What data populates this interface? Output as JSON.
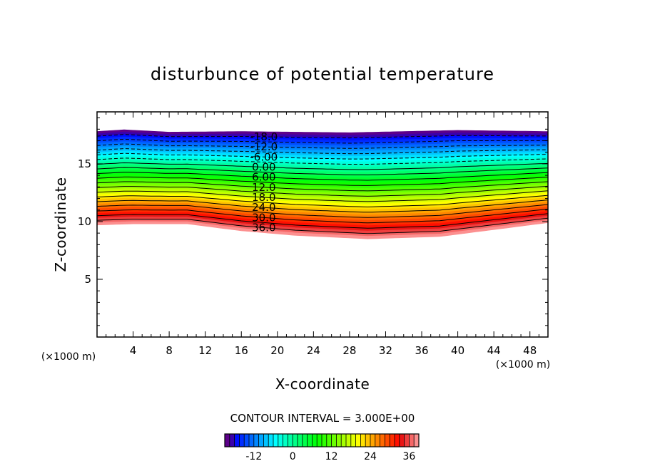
{
  "chart_data": {
    "type": "contour",
    "title": "disturbunce of potential temperature",
    "xlabel": "X-coordinate",
    "ylabel": "Z-coordinate",
    "x_unit": "(×1000 m)",
    "y_unit": "(×1000 m)",
    "xlim": [
      0,
      50
    ],
    "ylim": [
      0,
      19.5
    ],
    "x_ticks": [
      4,
      8,
      12,
      16,
      20,
      24,
      28,
      32,
      36,
      40,
      44,
      48
    ],
    "y_ticks": [
      5,
      10,
      15
    ],
    "contour_interval_text": "CONTOUR INTERVAL = 3.000E+00",
    "contour_interval": 3,
    "level_min": -18,
    "level_max": 36,
    "contour_labels": [
      "-18.0",
      "-12.0",
      "-6.00",
      "0.00",
      "6.00",
      "12.0",
      "18.0",
      "24.0",
      "30.0",
      "36.0"
    ],
    "contour_label_x": 18.5,
    "top_profile": [
      [
        0,
        17.8
      ],
      [
        3,
        17.95
      ],
      [
        8,
        17.75
      ],
      [
        16,
        17.8
      ],
      [
        28,
        17.7
      ],
      [
        40,
        17.9
      ],
      [
        50,
        17.8
      ]
    ],
    "bottom_profile": [
      [
        0,
        9.7
      ],
      [
        4,
        9.8
      ],
      [
        10,
        9.8
      ],
      [
        16,
        9.2
      ],
      [
        22,
        8.8
      ],
      [
        30,
        8.5
      ],
      [
        38,
        8.7
      ],
      [
        44,
        9.3
      ],
      [
        50,
        9.9
      ]
    ],
    "negative_lines_dashed": true,
    "colorbar": {
      "ticks": [
        "-12",
        "0",
        "12",
        "24",
        "36"
      ],
      "tick_values": [
        -12,
        0,
        12,
        24,
        36
      ],
      "min": -21,
      "max": 39
    }
  }
}
